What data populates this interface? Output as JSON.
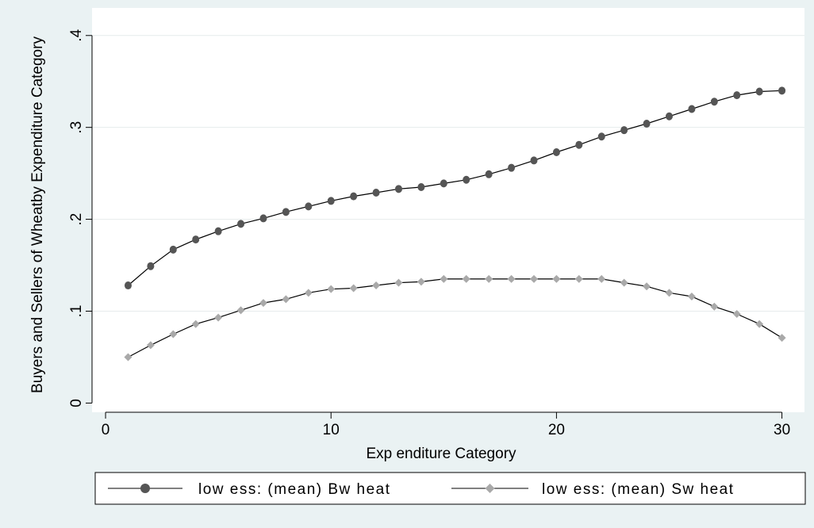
{
  "chart_data": {
    "type": "line",
    "xlabel": "Exp enditure Category",
    "ylabel": "Buyers and Sellers of Wheatby Expenditure Category",
    "x_ticks": [
      0,
      10,
      20,
      30
    ],
    "x_tick_labels": [
      "0",
      "10",
      "20",
      "30"
    ],
    "y_ticks": [
      0,
      0.1,
      0.2,
      0.3,
      0.4
    ],
    "y_tick_labels": [
      "0",
      ".1",
      ".2",
      ".3",
      ".4"
    ],
    "xlim": [
      -0.6,
      31
    ],
    "ylim": [
      -0.01,
      0.43
    ],
    "grid": true,
    "legend_position": "bottom",
    "x": [
      1,
      2,
      3,
      4,
      5,
      6,
      7,
      8,
      9,
      10,
      11,
      12,
      13,
      14,
      15,
      16,
      17,
      18,
      19,
      20,
      21,
      22,
      23,
      24,
      25,
      26,
      27,
      28,
      29,
      30
    ],
    "series": [
      {
        "name": "low ess: (mean) Bw heat",
        "marker": "circle",
        "color": "#555555",
        "values": [
          0.128,
          0.149,
          0.167,
          0.178,
          0.187,
          0.195,
          0.201,
          0.208,
          0.214,
          0.22,
          0.225,
          0.229,
          0.233,
          0.235,
          0.239,
          0.243,
          0.249,
          0.256,
          0.264,
          0.273,
          0.281,
          0.29,
          0.297,
          0.304,
          0.312,
          0.32,
          0.328,
          0.335,
          0.339,
          0.34
        ]
      },
      {
        "name": "low ess: (mean) Sw heat",
        "marker": "diamond",
        "color": "#a9a9a9",
        "values": [
          0.05,
          0.063,
          0.075,
          0.086,
          0.093,
          0.101,
          0.109,
          0.113,
          0.12,
          0.124,
          0.125,
          0.128,
          0.131,
          0.132,
          0.135,
          0.135,
          0.135,
          0.135,
          0.135,
          0.135,
          0.135,
          0.135,
          0.131,
          0.127,
          0.12,
          0.116,
          0.105,
          0.097,
          0.086,
          0.071
        ]
      }
    ]
  },
  "legend": {
    "items": [
      {
        "label": "low ess: (mean) Bw heat"
      },
      {
        "label": "low ess: (mean) Sw heat"
      }
    ]
  }
}
